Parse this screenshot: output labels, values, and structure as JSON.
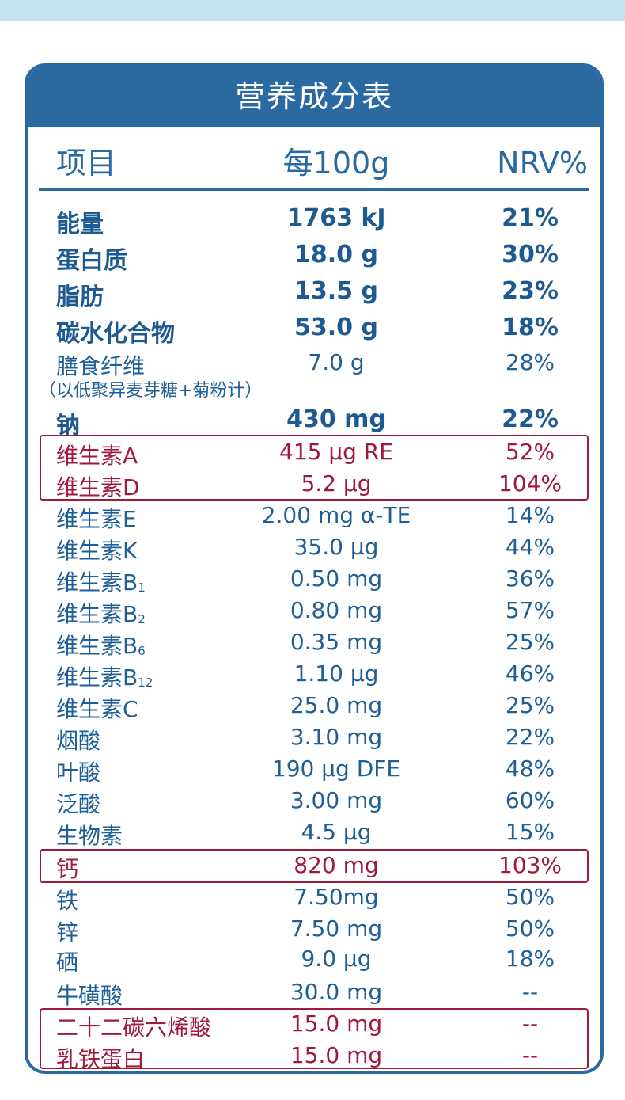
{
  "title": "营养成分表",
  "header": {
    "item": "项目",
    "per": "每100g",
    "nrv": "NRV%"
  },
  "colors": {
    "primary": "#2a6aa1",
    "highlight": "#a01a3c",
    "band": "#c5e2f3"
  },
  "rows": [
    {
      "name": "能量",
      "amount": "1763 kJ",
      "nrv": "21%",
      "style": "bold"
    },
    {
      "name": "蛋白质",
      "amount": "18.0 g",
      "nrv": "30%",
      "style": "bold"
    },
    {
      "name": "脂肪",
      "amount": "13.5 g",
      "nrv": "23%",
      "style": "bold"
    },
    {
      "name": "碳水化合物",
      "amount": "53.0 g",
      "nrv": "18%",
      "style": "bold"
    },
    {
      "name": "膳食纤维",
      "note": "（以低聚异麦芽糖+菊粉计）",
      "amount": "7.0 g",
      "nrv": "28%",
      "style": "normal"
    },
    {
      "name": "钠",
      "amount": "430 mg",
      "nrv": "22%",
      "style": "bold"
    },
    {
      "name": "维生素A",
      "amount": "415 μg RE",
      "nrv": "52%",
      "style": "red"
    },
    {
      "name": "维生素D",
      "amount": "5.2 μg",
      "nrv": "104%",
      "style": "red"
    },
    {
      "name": "维生素E",
      "amount": "2.00 mg α-TE",
      "nrv": "14%",
      "style": "normal"
    },
    {
      "name": "维生素K",
      "amount": "35.0 μg",
      "nrv": "44%",
      "style": "normal"
    },
    {
      "name": "维生素B",
      "sub": "1",
      "amount": "0.50 mg",
      "nrv": "36%",
      "style": "normal"
    },
    {
      "name": "维生素B",
      "sub": "2",
      "amount": "0.80 mg",
      "nrv": "57%",
      "style": "normal"
    },
    {
      "name": "维生素B",
      "sub": "6",
      "amount": "0.35 mg",
      "nrv": "25%",
      "style": "normal"
    },
    {
      "name": "维生素B",
      "sub": "12",
      "amount": "1.10 μg",
      "nrv": "46%",
      "style": "normal"
    },
    {
      "name": "维生素C",
      "amount": "25.0 mg",
      "nrv": "25%",
      "style": "normal"
    },
    {
      "name": "烟酸",
      "amount": "3.10 mg",
      "nrv": "22%",
      "style": "normal"
    },
    {
      "name": "叶酸",
      "amount": "190 μg DFE",
      "nrv": "48%",
      "style": "normal"
    },
    {
      "name": "泛酸",
      "amount": "3.00 mg",
      "nrv": "60%",
      "style": "normal"
    },
    {
      "name": "生物素",
      "amount": "4.5 μg",
      "nrv": "15%",
      "style": "normal"
    },
    {
      "name": "钙",
      "amount": "820 mg",
      "nrv": "103%",
      "style": "red"
    },
    {
      "name": "铁",
      "amount": "7.50mg",
      "nrv": "50%",
      "style": "normal"
    },
    {
      "name": "锌",
      "amount": "7.50 mg",
      "nrv": "50%",
      "style": "normal"
    },
    {
      "name": "硒",
      "amount": "9.0 μg",
      "nrv": "18%",
      "style": "normal"
    },
    {
      "name": "牛磺酸",
      "amount": "30.0 mg",
      "nrv": "--",
      "style": "normal"
    },
    {
      "name": "二十二碳六烯酸",
      "amount": "15.0 mg",
      "nrv": "--",
      "style": "red"
    },
    {
      "name": "乳铁蛋白",
      "amount": "15.0 mg",
      "nrv": "--",
      "style": "red"
    }
  ]
}
